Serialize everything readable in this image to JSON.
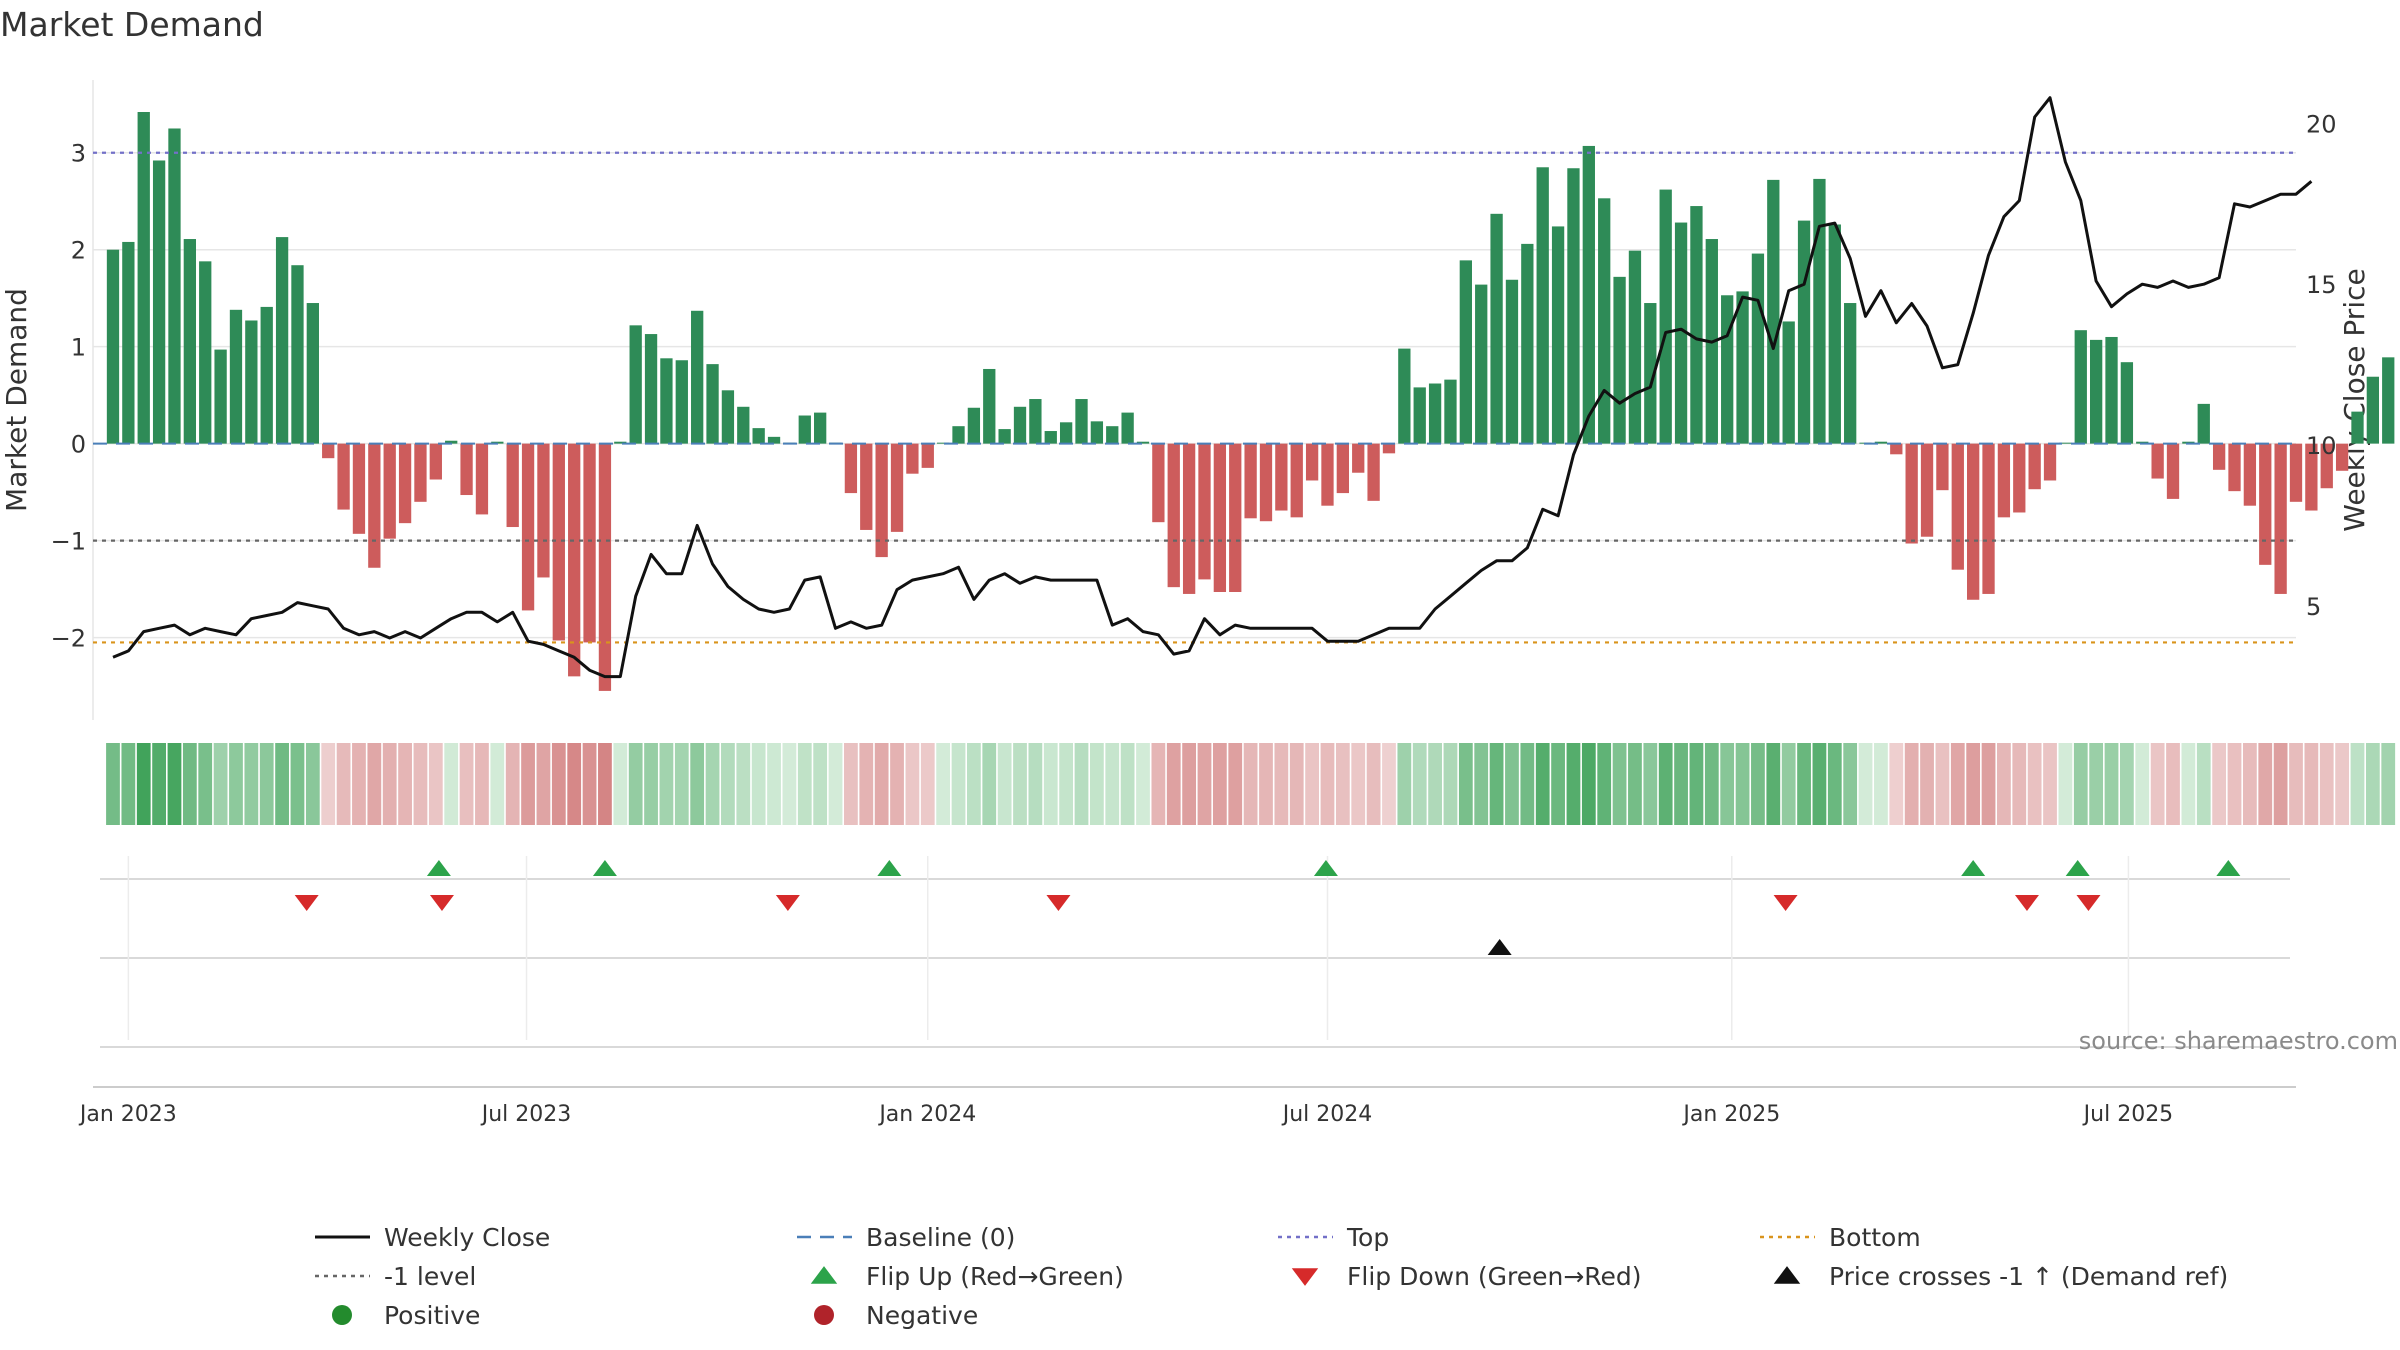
{
  "chart_data": {
    "type": "bar",
    "title": "Market Demand",
    "ylabel": "Market Demand",
    "y2label": "Weekly Close Price",
    "ylim": [
      -2.85,
      3.75
    ],
    "y2lim": [
      1.45,
      21.35
    ],
    "yticks": [
      -2,
      -1,
      0,
      1,
      2,
      3
    ],
    "ytick_labels": [
      "−2",
      "−1",
      "0",
      "1",
      "2",
      "3"
    ],
    "y2ticks": [
      5,
      10,
      15,
      20
    ],
    "y2tick_labels": [
      "5",
      "10",
      "15",
      "20"
    ],
    "x_start": "2022-12-25",
    "x_step_days": 7,
    "x_range_weeks": [
      -1.3,
      142
    ],
    "xticks": [
      {
        "label": "Jan 2023",
        "week": 1
      },
      {
        "label": "Jul 2023",
        "week": 26.9
      },
      {
        "label": "Jan 2024",
        "week": 53
      },
      {
        "label": "Jul 2024",
        "week": 79
      },
      {
        "label": "Jan 2025",
        "week": 105.3
      },
      {
        "label": "Jul 2025",
        "week": 131.1
      }
    ],
    "reference_lines": {
      "top": 3.0,
      "level_minus_1": -1.0,
      "bottom": -2.05,
      "baseline": 0
    },
    "series": [
      {
        "name": "Market Demand",
        "type": "bar",
        "values": [
          2.0,
          2.08,
          3.42,
          2.92,
          3.25,
          2.11,
          1.88,
          0.97,
          1.38,
          1.27,
          1.41,
          2.13,
          1.84,
          1.45,
          -0.15,
          -0.68,
          -0.93,
          -1.28,
          -0.98,
          -0.82,
          -0.6,
          -0.37,
          0.03,
          -0.53,
          -0.73,
          0.02,
          -0.86,
          -1.72,
          -1.38,
          -2.03,
          -2.4,
          -2.05,
          -2.55,
          0.02,
          1.22,
          1.13,
          0.88,
          0.86,
          1.37,
          0.82,
          0.55,
          0.38,
          0.16,
          0.07,
          0.01,
          0.29,
          0.32,
          0.01,
          -0.51,
          -0.89,
          -1.17,
          -0.91,
          -0.31,
          -0.25,
          0.01,
          0.18,
          0.37,
          0.77,
          0.15,
          0.38,
          0.46,
          0.13,
          0.22,
          0.46,
          0.23,
          0.18,
          0.32,
          0.02,
          -0.81,
          -1.48,
          -1.55,
          -1.4,
          -1.53,
          -1.53,
          -0.77,
          -0.8,
          -0.69,
          -0.76,
          -0.38,
          -0.64,
          -0.51,
          -0.3,
          -0.59,
          -0.1,
          0.98,
          0.58,
          0.62,
          0.66,
          1.89,
          1.64,
          2.37,
          1.69,
          2.06,
          2.85,
          2.24,
          2.84,
          3.07,
          2.53,
          1.72,
          1.99,
          1.45,
          2.62,
          2.28,
          2.45,
          2.11,
          1.53,
          1.57,
          1.96,
          2.72,
          1.26,
          2.3,
          2.73,
          2.26,
          1.45,
          0.01,
          0.02,
          -0.11,
          -1.03,
          -0.96,
          -0.48,
          -1.3,
          -1.61,
          -1.55,
          -0.76,
          -0.71,
          -0.47,
          -0.38,
          0.01,
          1.17,
          1.07,
          1.1,
          0.84,
          0.02,
          -0.36,
          -0.57,
          0.02,
          0.41,
          -0.27,
          -0.49,
          -0.64,
          -1.25,
          -1.55,
          -0.6,
          -0.69,
          -0.46,
          -0.28,
          0.33,
          0.69,
          0.89
        ]
      },
      {
        "name": "Weekly Close",
        "type": "line",
        "axis": "right",
        "values": [
          3.4,
          3.6,
          4.2,
          4.3,
          4.4,
          4.1,
          4.3,
          4.2,
          4.1,
          4.6,
          4.7,
          4.8,
          5.1,
          5.0,
          4.9,
          4.3,
          4.1,
          4.2,
          4.0,
          4.2,
          4.0,
          4.3,
          4.6,
          4.8,
          4.8,
          4.5,
          4.8,
          3.9,
          3.8,
          3.6,
          3.4,
          3.0,
          2.8,
          2.8,
          5.3,
          6.6,
          6.0,
          6.0,
          7.5,
          6.3,
          5.6,
          5.2,
          4.9,
          4.8,
          4.9,
          5.8,
          5.9,
          4.3,
          4.5,
          4.3,
          4.4,
          5.5,
          5.8,
          5.9,
          6.0,
          6.2,
          5.2,
          5.8,
          6.0,
          5.7,
          5.9,
          5.8,
          5.8,
          5.8,
          5.8,
          4.4,
          4.6,
          4.2,
          4.1,
          3.5,
          3.6,
          4.6,
          4.1,
          4.4,
          4.3,
          4.3,
          4.3,
          4.3,
          4.3,
          3.9,
          3.9,
          3.9,
          4.1,
          4.3,
          4.3,
          4.3,
          4.9,
          5.3,
          5.7,
          6.1,
          6.4,
          6.4,
          6.8,
          8.0,
          7.8,
          9.7,
          10.9,
          11.7,
          11.3,
          11.6,
          11.8,
          13.5,
          13.6,
          13.3,
          13.2,
          13.4,
          14.6,
          14.5,
          13.0,
          14.8,
          15.0,
          16.8,
          16.9,
          15.8,
          14.0,
          14.8,
          13.8,
          14.4,
          13.7,
          12.4,
          12.5,
          14.1,
          15.9,
          17.1,
          17.6,
          20.2,
          20.8,
          18.8,
          17.6,
          15.1,
          14.3,
          14.7,
          15.0,
          14.9,
          15.1,
          14.9,
          15.0,
          15.2,
          17.5,
          17.4,
          17.6,
          17.8,
          17.8,
          18.2
        ]
      }
    ],
    "heat_strip": "Market Demand intensity (green positive, red negative)",
    "events": {
      "flip_up_weeks": [
        21.2,
        32,
        50.5,
        78.9,
        121,
        127.8,
        137.6
      ],
      "flip_down_weeks": [
        12.6,
        21.4,
        43.9,
        61.5,
        108.8,
        124.5,
        128.5
      ],
      "price_cross_weeks": [
        90.2
      ]
    },
    "legend": {
      "placement": "bottom",
      "entries": [
        {
          "label": "Weekly Close",
          "marker": "line",
          "color": "#111111"
        },
        {
          "label": "Baseline (0)",
          "marker": "dash",
          "color": "#4a7fb8"
        },
        {
          "label": "Top",
          "marker": "dot",
          "color": "#7370c8"
        },
        {
          "label": "Bottom",
          "marker": "dot",
          "color": "#d9941c"
        },
        {
          "label": "-1 level",
          "marker": "dot",
          "color": "#666666"
        },
        {
          "label": "Flip Up (Red→Green)",
          "marker": "triangle-up",
          "color": "#2ca34a"
        },
        {
          "label": "Flip Down (Green→Red)",
          "marker": "triangle-down",
          "color": "#d62a2a"
        },
        {
          "label": "Price crosses -1 ↑ (Demand ref)",
          "marker": "triangle-up",
          "color": "#111111"
        },
        {
          "label": "Positive",
          "marker": "circle",
          "color": "#238b2d"
        },
        {
          "label": "Negative",
          "marker": "circle",
          "color": "#b0232a"
        }
      ]
    },
    "source": "source: sharemaestro.com"
  },
  "colors": {
    "positive_bar": "#2e8b57",
    "negative_bar": "#cd5c5c",
    "close_line": "#111111",
    "grid": "#e6e6e6"
  }
}
